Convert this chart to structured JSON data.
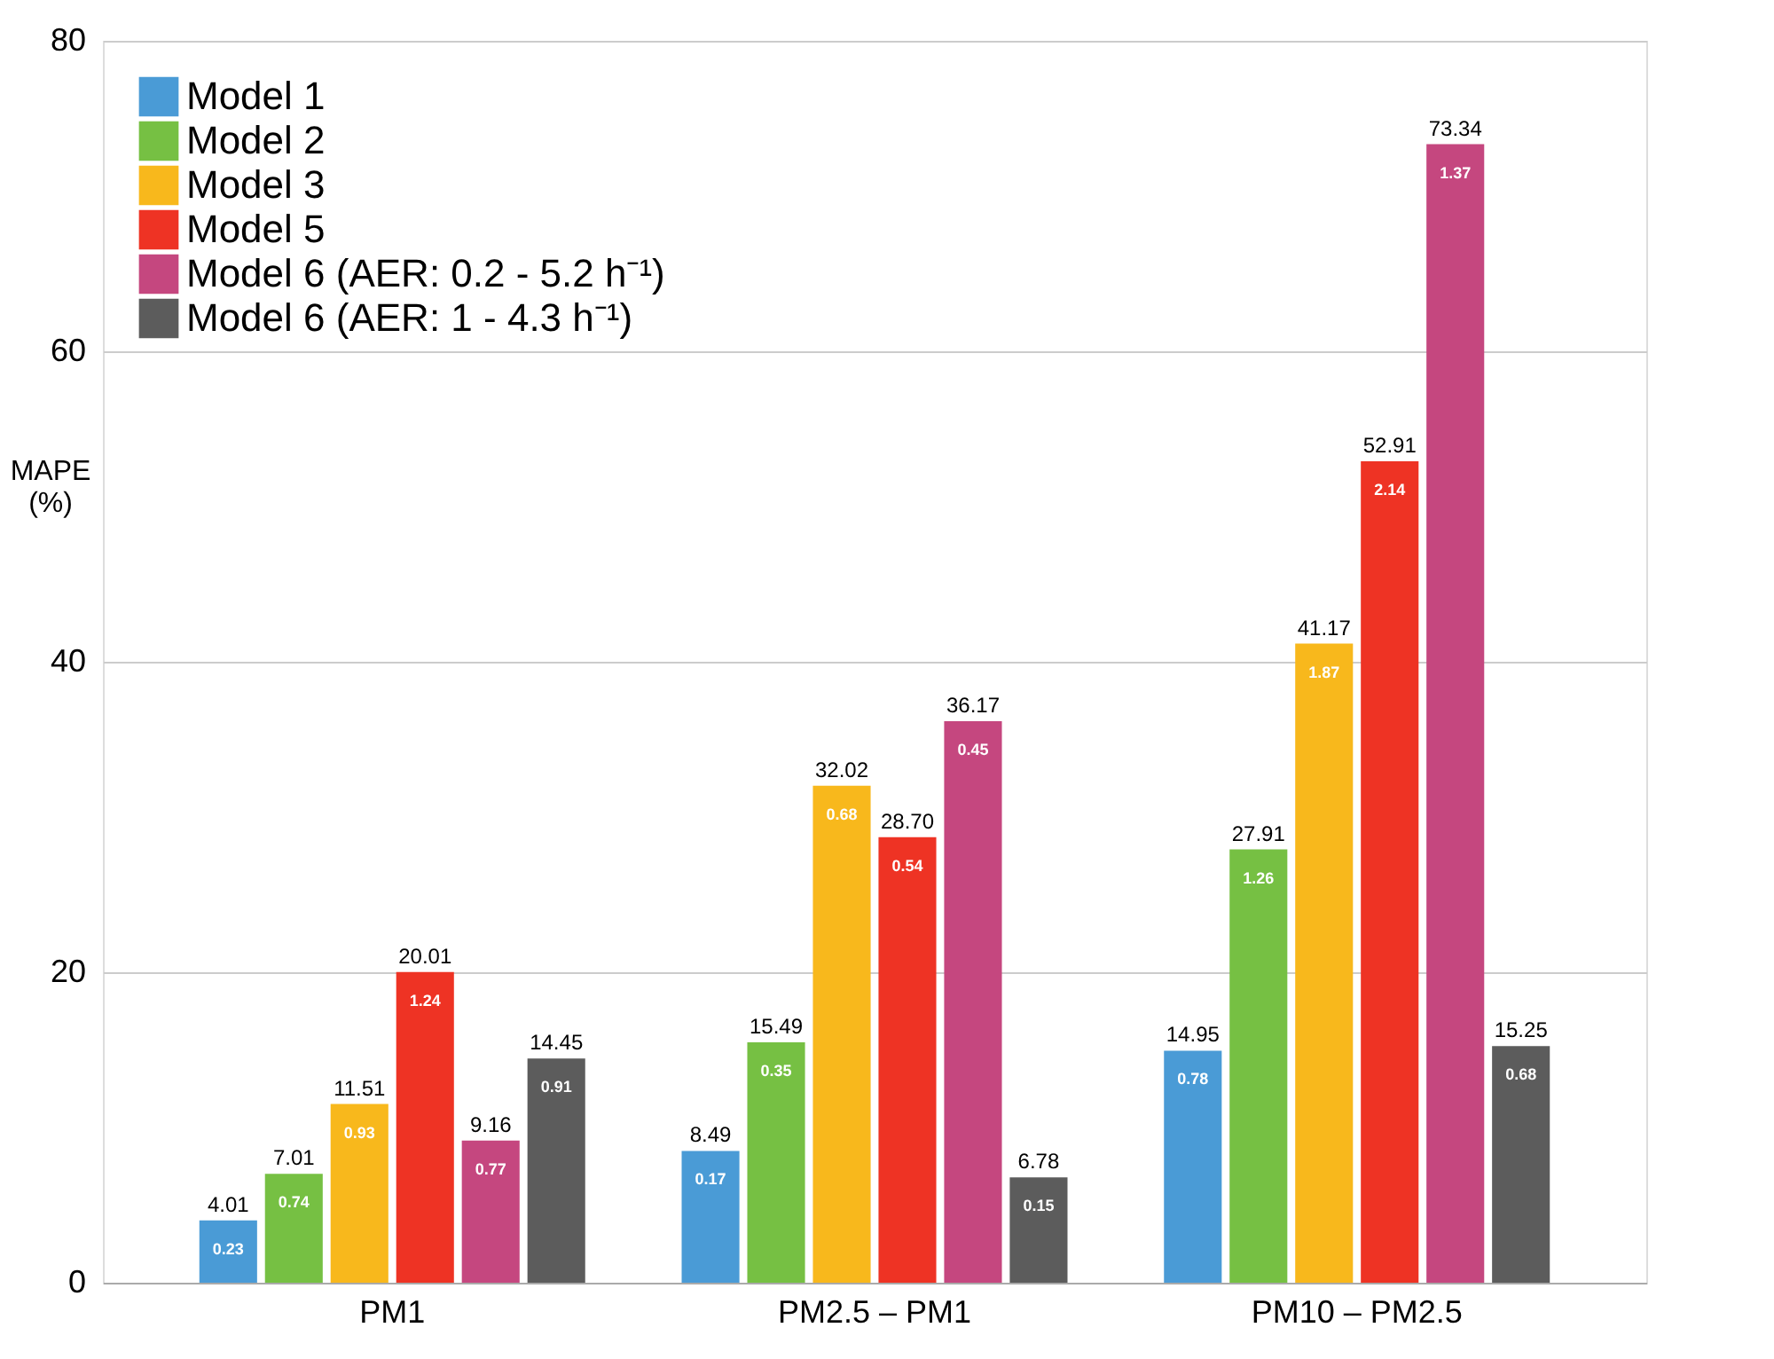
{
  "chart_data": {
    "type": "bar",
    "ylabel": "MAPE (%)",
    "categories": [
      "PM1",
      "PM2.5 – PM1",
      "PM10 – PM2.5"
    ],
    "series": [
      {
        "name": "Model 1",
        "color": "#4a9bd6",
        "values": [
          4.01,
          8.49,
          14.95
        ],
        "value_labels": [
          "4.01",
          "8.49",
          "14.95"
        ]
      },
      {
        "name": "Model 2",
        "color": "#76c043",
        "values": [
          7.01,
          15.49,
          27.91
        ],
        "value_labels": [
          "7.01",
          "15.49",
          "27.91"
        ]
      },
      {
        "name": "Model 3",
        "color": "#f8b81c",
        "values": [
          11.51,
          32.02,
          41.17
        ],
        "value_labels": [
          "11.51",
          "32.02",
          "41.17"
        ]
      },
      {
        "name": "Model 5",
        "color": "#ee3324",
        "values": [
          20.01,
          28.7,
          52.91
        ],
        "value_labels": [
          "20.01",
          "28.70",
          "52.91"
        ]
      },
      {
        "name": "Model 6 (AER: 0.2 - 5.2 h⁻¹)",
        "color": "#c5477f",
        "values": [
          9.16,
          36.17,
          73.34
        ],
        "value_labels": [
          "9.16",
          "36.17",
          "73.34"
        ]
      },
      {
        "name": "Model 6 (AER: 1 - 4.3 h⁻¹)",
        "color": "#5c5c5c",
        "values": [
          14.45,
          6.78,
          15.25
        ],
        "value_labels": [
          "14.45",
          "6.78",
          "15.25"
        ]
      }
    ],
    "annotations": [
      "0.23",
      "0.17",
      "0.78",
      "0.74",
      "0.35",
      "1.26",
      "0.93",
      "0.68",
      "1.87",
      "1.24",
      "0.54",
      "2.14",
      "0.77",
      "0.45",
      "1.37",
      "0.91",
      "0.15",
      "0.68"
    ],
    "ylim": [
      0,
      80
    ],
    "yticks": [
      0,
      20,
      40,
      60,
      80
    ],
    "grid": "y",
    "legend": "top left"
  }
}
